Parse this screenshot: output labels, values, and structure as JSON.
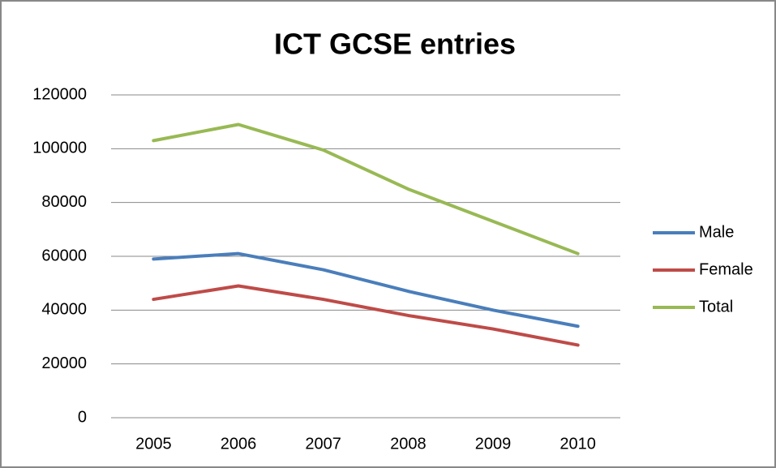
{
  "chart_data": {
    "type": "line",
    "title": "ICT GCSE entries",
    "categories": [
      "2005",
      "2006",
      "2007",
      "2008",
      "2009",
      "2010"
    ],
    "series": [
      {
        "name": "Male",
        "color": "#4a7ebb",
        "values": [
          59000,
          61000,
          55000,
          47000,
          40000,
          34000
        ]
      },
      {
        "name": "Female",
        "color": "#be4b48",
        "values": [
          44000,
          49000,
          44000,
          38000,
          33000,
          27000
        ]
      },
      {
        "name": "Total",
        "color": "#98b954",
        "values": [
          103000,
          109000,
          99500,
          85000,
          73000,
          61000
        ]
      }
    ],
    "ylim": [
      0,
      120000
    ],
    "yticks": [
      0,
      20000,
      40000,
      60000,
      80000,
      100000,
      120000
    ],
    "grid": true,
    "legend": "right"
  }
}
